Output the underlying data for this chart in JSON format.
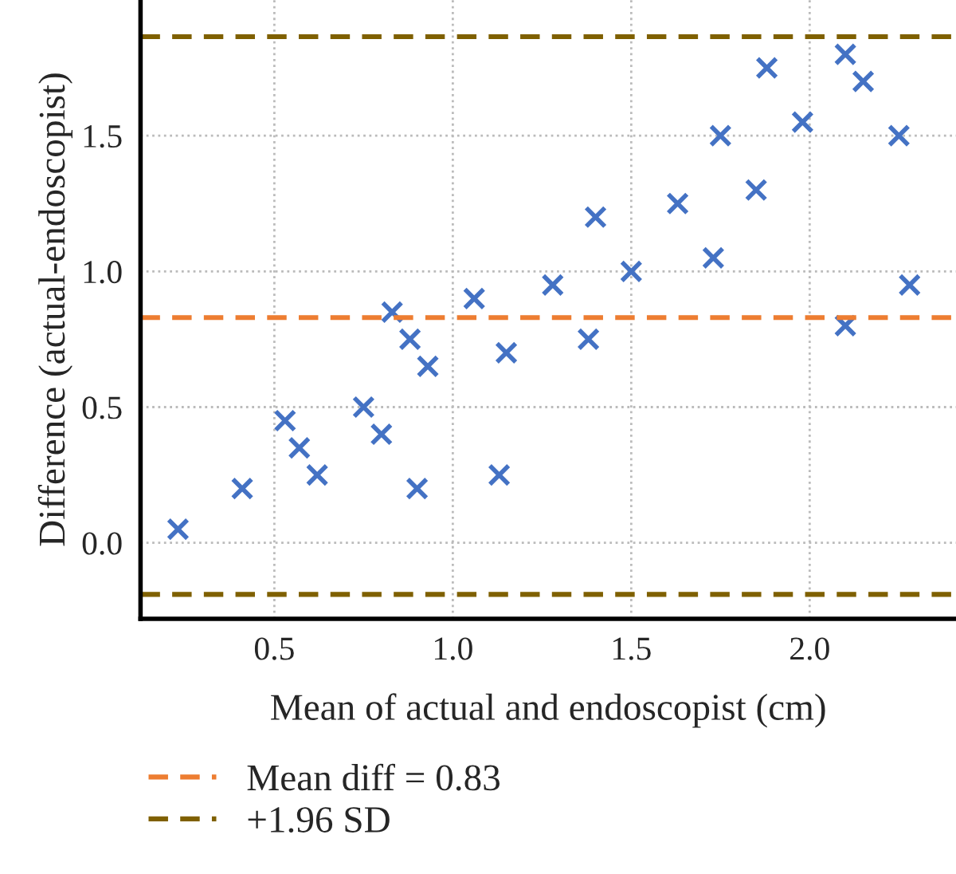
{
  "chart_data": {
    "type": "scatter",
    "xlabel": "Mean of actual and endoscopist (cm)",
    "ylabel": "Difference (actual-endoscopist)",
    "series": [
      {
        "color": "#4472c4",
        "x": [
          0.23,
          0.41,
          0.53,
          0.57,
          0.62,
          0.75,
          0.8,
          0.83,
          0.88,
          0.93,
          0.9,
          1.06,
          1.13,
          1.15,
          1.28,
          1.38,
          1.4,
          1.5,
          1.63,
          1.73,
          1.75,
          1.85,
          1.88,
          1.98,
          2.1,
          2.1,
          2.15,
          2.25,
          2.28
        ],
        "values": [
          0.05,
          0.2,
          0.45,
          0.35,
          0.25,
          0.5,
          0.4,
          0.85,
          0.75,
          0.65,
          0.2,
          0.9,
          0.25,
          0.7,
          0.95,
          0.75,
          1.2,
          1.0,
          1.25,
          1.05,
          1.5,
          1.3,
          1.75,
          1.55,
          1.8,
          0.8,
          1.7,
          1.5,
          0.95
        ]
      }
    ],
    "marker": "cross",
    "xlim": [
      0.125,
      2.41
    ],
    "ylim": [
      -0.28,
      2.0
    ],
    "xticks": [
      0.5,
      {
        "value": 1,
        "label": "1.0"
      },
      1.5,
      {
        "value": 2,
        "label": "2.0"
      }
    ],
    "yticks": [
      {
        "value": 0,
        "label": "0.0"
      },
      0.5,
      {
        "value": 1,
        "label": "1.0"
      },
      1.5
    ],
    "ref_lines": [
      {
        "axis": "y",
        "value": 0.83,
        "label": "Mean diff = 0.83",
        "color": "#ed7d31",
        "line_style": "dashed"
      },
      {
        "axis": "y",
        "value": 1.865,
        "label": "+1.96 SD",
        "color": "#7f6000",
        "line_style": "dashed"
      },
      {
        "axis": "y",
        "value": -0.19,
        "color": "#7f6000",
        "line_style": "dashed"
      }
    ],
    "grid": true,
    "legend": "bottom left"
  }
}
